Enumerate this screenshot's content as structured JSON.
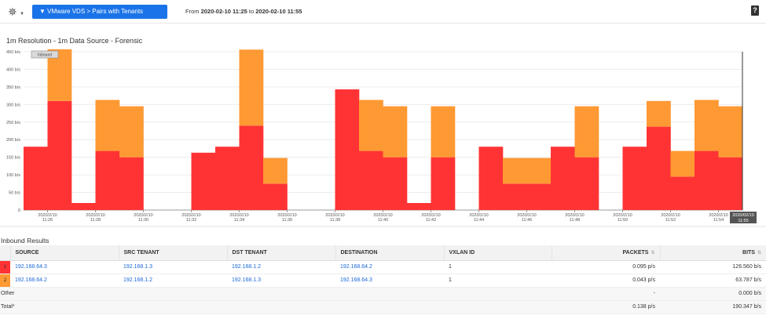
{
  "toolbar": {
    "gear_icon": "gear-icon",
    "view_button_label": "▼ VMware VDS > Pairs with Tenants",
    "from_label": "From",
    "from_value": "2020-02-10 11:25",
    "to_label": "to",
    "to_value": "2020-02-10 11:55",
    "help_label": "?"
  },
  "chart": {
    "title": "1m Resolution - 1m Data Source - Forensic",
    "inbound_marker": "Inbound",
    "cursor_label_line1": "2020/02/10",
    "cursor_label_line2": "11:55"
  },
  "chart_data": {
    "type": "bar",
    "stacked": true,
    "y_unit": "b/s",
    "ylim": [
      0,
      450
    ],
    "y_ticks": [
      "0",
      "50 b/s",
      "100 b/s",
      "150 b/s",
      "200 b/s",
      "250 b/s",
      "300 b/s",
      "350 b/s",
      "400 b/s",
      "450 b/s"
    ],
    "x_tick_labels": [
      [
        "2020/2/10",
        "11:26"
      ],
      [
        "2020/2/10",
        "11:28"
      ],
      [
        "2020/2/10",
        "11:30"
      ],
      [
        "2020/2/10",
        "11:32"
      ],
      [
        "2020/2/10",
        "11:34"
      ],
      [
        "2020/2/10",
        "11:36"
      ],
      [
        "2020/2/10",
        "11:38"
      ],
      [
        "2020/2/10",
        "11:40"
      ],
      [
        "2020/2/10",
        "11:42"
      ],
      [
        "2020/2/10",
        "11:44"
      ],
      [
        "2020/2/10",
        "11:46"
      ],
      [
        "2020/2/10",
        "11:48"
      ],
      [
        "2020/2/10",
        "11:50"
      ],
      [
        "2020/2/10",
        "11:52"
      ],
      [
        "2020/2/10",
        "11:54"
      ]
    ],
    "series": [
      {
        "color": "#ff3333",
        "values": [
          180,
          310,
          20,
          168,
          150,
          0,
          0,
          163,
          180,
          240,
          75,
          0,
          0,
          343,
          168,
          150,
          20,
          150,
          0,
          180,
          75,
          75,
          180,
          150,
          0,
          180,
          237,
          95,
          168,
          150
        ]
      },
      {
        "color": "#ff9933",
        "values": [
          0,
          147,
          0,
          145,
          145,
          0,
          0,
          0,
          0,
          216,
          73,
          0,
          0,
          0,
          145,
          145,
          0,
          145,
          0,
          0,
          73,
          73,
          0,
          145,
          0,
          0,
          73,
          73,
          145,
          145
        ]
      }
    ],
    "grid": true,
    "legend": "none"
  },
  "results": {
    "label": "Inbound Results",
    "columns": [
      "SOURCE",
      "SRC TENANT",
      "DST TENANT",
      "DESTINATION",
      "VXLAN ID",
      "PACKETS",
      "BITS"
    ],
    "rows": [
      {
        "index": "1",
        "source": "192.168.64.3",
        "src_tenant": "192.168.1.3",
        "dst_tenant": "192.168.1.2",
        "destination": "192.168.64.2",
        "vxlan": "1",
        "packets": "0.095 p/s",
        "bits": "126.560 b/s",
        "color": "#ff3333"
      },
      {
        "index": "2",
        "source": "192.168.64.2",
        "src_tenant": "192.168.1.2",
        "dst_tenant": "192.168.1.3",
        "destination": "192.168.64.3",
        "vxlan": "1",
        "packets": "0.043 p/s",
        "bits": "63.787 b/s",
        "color": "#ff9933"
      }
    ],
    "other": {
      "label": "Other",
      "packets": "-",
      "bits": "0.000 b/s"
    },
    "total": {
      "label": "Total*",
      "packets": "0.138 p/s",
      "bits": "190.347 b/s"
    }
  }
}
